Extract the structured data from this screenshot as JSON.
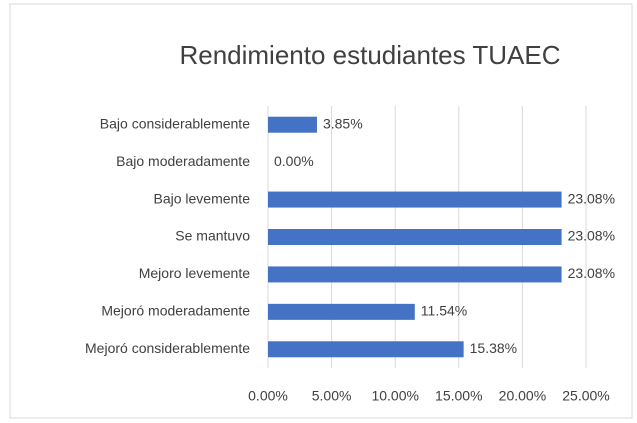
{
  "chart_data": {
    "type": "bar",
    "orientation": "horizontal",
    "title": "Rendimiento estudiantes TUAEC",
    "categories": [
      "Bajo considerablemente",
      "Bajo moderadamente",
      "Bajo levemente",
      "Se mantuvo",
      "Mejoro levemente",
      "Mejoró moderadamente",
      "Mejoró considerablemente"
    ],
    "values": [
      3.85,
      0,
      23.08,
      23.08,
      23.08,
      11.54,
      15.38
    ],
    "value_labels": [
      "3.85%",
      "0.00%",
      "23.08%",
      "23.08%",
      "23.08%",
      "11.54%",
      "15.38%"
    ],
    "color": "#4472c4",
    "xlim": [
      0,
      25
    ],
    "xticks": [
      {
        "value": 0,
        "label": "0.00%"
      },
      {
        "value": 5,
        "label": "5.00%"
      },
      {
        "value": 10,
        "label": "10.00%"
      },
      {
        "value": 15,
        "label": "15.00%"
      },
      {
        "value": 20,
        "label": "20.00%"
      },
      {
        "value": 25,
        "label": "25.00%"
      }
    ],
    "grid": true
  }
}
